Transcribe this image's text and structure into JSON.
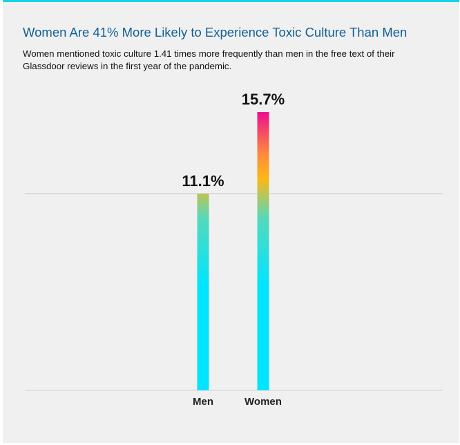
{
  "header": {
    "title": "Women Are 41% More Likely to Experience Toxic Culture Than Men",
    "subtitle": "Women mentioned toxic culture 1.41 times more frequently than men in the free text of their Glassdoor reviews in the first year of the pandemic."
  },
  "colors": {
    "accent_bar": "#14d4e8",
    "title": "#0f5f96",
    "background": "#f0f0f0",
    "gradient_bottom": "#00e5ff",
    "gradient_mid_teal": "#55d9b9",
    "gradient_mid_yellow": "#fcb817",
    "gradient_orange": "#ff8a3d",
    "gradient_top": "#ec0f8c"
  },
  "chart_data": {
    "type": "bar",
    "categories": [
      "Men",
      "Women"
    ],
    "values": [
      11.1,
      15.7
    ],
    "data_labels": [
      "11.1%",
      "15.7%"
    ],
    "title": "Women Are 41% More Likely to Experience Toxic Culture Than Men",
    "xlabel": "",
    "ylabel": "",
    "grid": true,
    "legend": "none"
  }
}
